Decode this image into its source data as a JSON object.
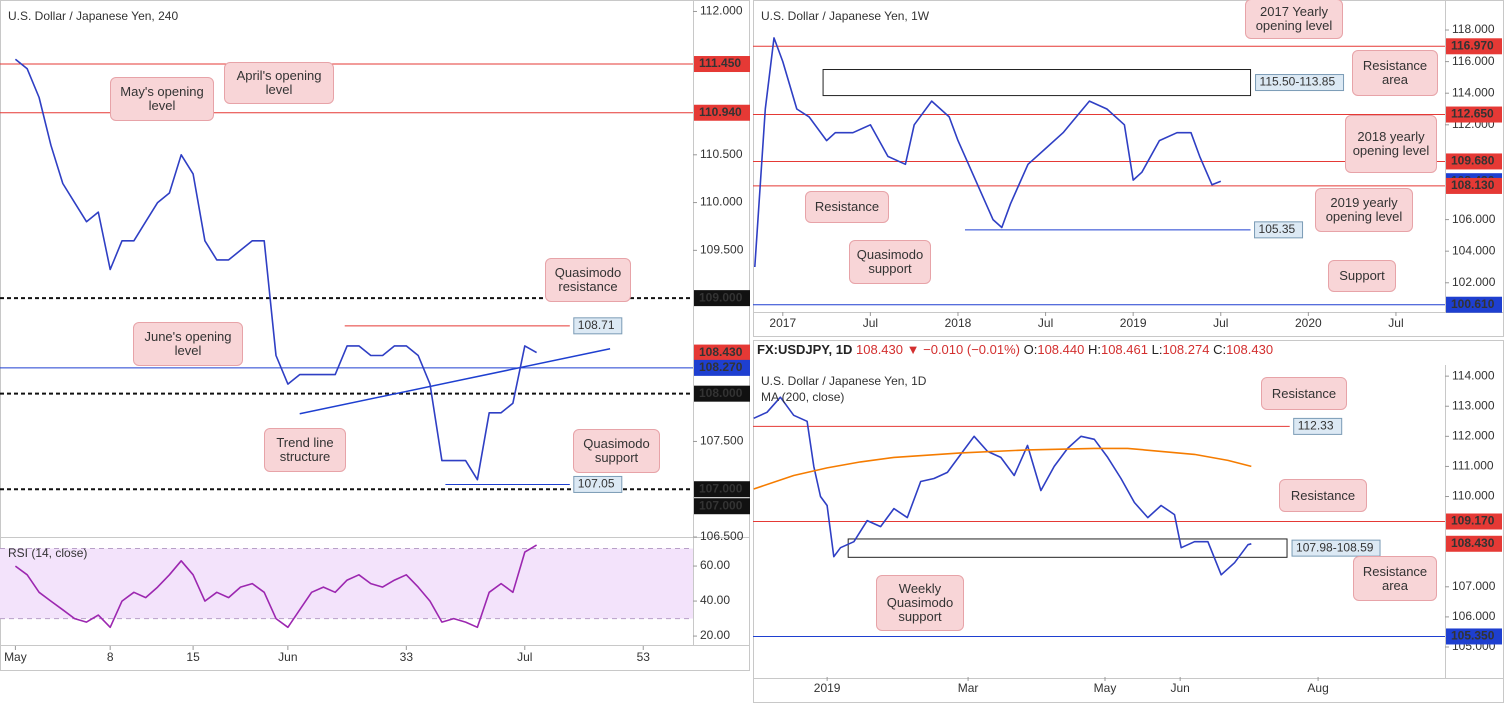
{
  "header": {
    "symbol": "FX:USDJPY, 1D",
    "price": "108.430",
    "arrow": "▼",
    "change": "−0.010 (−0.01%)",
    "open_label": "O:",
    "open": "108.440",
    "high_label": "H:",
    "high": "108.461",
    "low_label": "L:",
    "low": "108.274",
    "close_label": "C:",
    "close": "108.430"
  },
  "chart_data": [
    {
      "type": "line",
      "title": "U.S. Dollar / Japanese Yen, 240",
      "series": [
        {
          "color": "#2f3fc4",
          "values": [
            111.5,
            111.4,
            111.1,
            110.6,
            110.2,
            110.0,
            109.8,
            109.9,
            109.3,
            109.6,
            109.6,
            109.8,
            110.0,
            110.1,
            110.5,
            110.3,
            109.6,
            109.4,
            109.4,
            109.5,
            109.6,
            109.6,
            108.4,
            108.1,
            108.2,
            108.2,
            108.2,
            108.2,
            108.5,
            108.5,
            108.4,
            108.4,
            108.5,
            108.5,
            108.4,
            108.1,
            107.3,
            107.3,
            107.3,
            107.1,
            107.8,
            107.8,
            107.9,
            108.5,
            108.43
          ]
        }
      ],
      "xlim": [
        -1.3,
        57.2
      ],
      "ylim": [
        106.5,
        112.12
      ],
      "xticks": [
        {
          "value": 0,
          "label": "May"
        },
        8,
        15,
        {
          "value": 23,
          "label": "Jun"
        },
        33,
        {
          "value": 43,
          "label": "Jul"
        },
        53
      ],
      "yticks": [
        {
          "value": 112,
          "label": "112.000"
        },
        {
          "value": 110.5,
          "label": "110.500"
        },
        {
          "value": 110,
          "label": "110.000"
        },
        {
          "value": 109.5,
          "label": "109.500"
        },
        {
          "value": 107.5,
          "label": "107.500"
        },
        {
          "value": 106.5,
          "label": "106.500"
        }
      ],
      "levels": [
        {
          "value": 111.45,
          "label": "111.450",
          "color": "#e53935",
          "style": "solid"
        },
        {
          "value": 110.94,
          "label": "110.940",
          "color": "#e53935",
          "style": "solid"
        },
        {
          "value": 109,
          "label": "109.000",
          "color": "#111111",
          "style": "dashed"
        },
        {
          "value": 108.43,
          "label": "108.430",
          "color": "#e53935",
          "style": "none"
        },
        {
          "value": 108.27,
          "label": "108.270",
          "color": "#1e3fd0",
          "style": "solid"
        },
        {
          "value": 108,
          "label": "108.000",
          "color": "#111111",
          "style": "dashed"
        },
        {
          "value": 107,
          "label": "107.000",
          "color": "#111111",
          "style": "dashed"
        },
        {
          "value": 107,
          "label": "107.000",
          "color": "#111111",
          "style": "none"
        },
        {
          "value": 108.71,
          "label": "108.71",
          "color": "#e53935",
          "style": "solid",
          "x": [
            27.8,
            46.8
          ]
        },
        {
          "value": 107.05,
          "label": "107.05",
          "color": "#1e3fd0",
          "style": "solid",
          "x": [
            36.3,
            46.8
          ]
        }
      ],
      "lines": [
        {
          "color": "#1e3fd0",
          "x": [
            24,
            50.2
          ],
          "values": [
            107.79,
            108.47
          ]
        }
      ],
      "annotations": [
        "May's opening level",
        "April's opening level",
        "Quasimodo resistance",
        "June's opening level",
        "Trend line structure",
        "Quasimodo support"
      ]
    },
    {
      "type": "line",
      "title": "RSI (14, close)",
      "series": [
        {
          "color": "#9c27b0",
          "values": [
            60,
            55,
            45,
            40,
            35,
            30,
            28,
            32,
            25,
            40,
            45,
            42,
            48,
            55,
            63,
            55,
            40,
            45,
            42,
            48,
            50,
            45,
            30,
            25,
            35,
            45,
            48,
            45,
            52,
            55,
            50,
            48,
            52,
            55,
            48,
            40,
            28,
            30,
            28,
            25,
            45,
            50,
            45,
            68,
            72
          ]
        }
      ],
      "xlim": [
        -1.3,
        57.2
      ],
      "ylim": [
        14.9,
        76.6
      ],
      "yticks": [
        {
          "value": 60,
          "label": "60.00"
        },
        {
          "value": 40,
          "label": "40.00"
        },
        {
          "value": 20,
          "label": "20.00"
        }
      ],
      "band": [
        30,
        70
      ],
      "band_color": "#f3e3fb"
    },
    {
      "type": "line",
      "title": "U.S. Dollar / Japanese Yen, 1W",
      "x": [
        2016.84,
        2016.9,
        2016.95,
        2017.0,
        2017.08,
        2017.15,
        2017.25,
        2017.3,
        2017.4,
        2017.5,
        2017.6,
        2017.7,
        2017.75,
        2017.85,
        2017.95,
        2018.0,
        2018.1,
        2018.2,
        2018.25,
        2018.3,
        2018.4,
        2018.5,
        2018.6,
        2018.75,
        2018.85,
        2018.95,
        2019.0,
        2019.05,
        2019.15,
        2019.25,
        2019.33,
        2019.38,
        2019.45,
        2019.5
      ],
      "series": [
        {
          "color": "#2f3fc4",
          "values": [
            103,
            113,
            117.5,
            116,
            113,
            112.5,
            111,
            111.5,
            111.5,
            112,
            110,
            109.5,
            112,
            113.5,
            112.5,
            111,
            108.5,
            106,
            105.5,
            107,
            109.5,
            110.5,
            111.5,
            113.5,
            113,
            112,
            108.5,
            109,
            111,
            111.5,
            111.5,
            110,
            108.2,
            108.43
          ]
        }
      ],
      "xlim": [
        2016.83,
        2020.78
      ],
      "ylim": [
        100.15,
        119.9
      ],
      "xticks": [
        2017,
        {
          "value": 2017.5,
          "label": "Jul"
        },
        2018,
        {
          "value": 2018.5,
          "label": "Jul"
        },
        2019,
        {
          "value": 2019.5,
          "label": "Jul"
        },
        2020,
        {
          "value": 2020.5,
          "label": "Jul"
        }
      ],
      "yticks": [
        {
          "value": 118,
          "label": "118.000"
        },
        {
          "value": 116,
          "label": "116.000"
        },
        {
          "value": 114,
          "label": "114.000"
        },
        {
          "value": 112,
          "label": "112.000"
        },
        {
          "value": 106,
          "label": "106.000"
        },
        {
          "value": 104,
          "label": "104.000"
        },
        {
          "value": 102,
          "label": "102.000"
        }
      ],
      "levels": [
        {
          "value": 116.97,
          "label": "116.970",
          "color": "#e53935",
          "style": "solid"
        },
        {
          "value": 112.65,
          "label": "112.650",
          "color": "#e53935",
          "style": "solid"
        },
        {
          "value": 109.68,
          "label": "109.680",
          "color": "#e53935",
          "style": "solid"
        },
        {
          "value": 108.43,
          "label": "108.430",
          "color": "#1e3fd0",
          "style": "none"
        },
        {
          "value": 108.13,
          "label": "108.130",
          "color": "#e53935",
          "style": "solid"
        },
        {
          "value": 100.61,
          "label": "100.610",
          "color": "#1e3fd0",
          "style": "solid"
        },
        {
          "value": 105.35,
          "label": "105.35",
          "color": "#1e3fd0",
          "style": "solid",
          "x": [
            2018.04,
            2019.67
          ]
        }
      ],
      "zones": [
        {
          "x": [
            2017.23,
            2019.67
          ],
          "range": [
            115.5,
            113.85
          ],
          "label": "115.50-113.85"
        }
      ],
      "annotations": [
        "2017 Yearly opening level",
        "Resistance area",
        "2018 yearly opening level",
        "Resistance",
        "2019 yearly opening level",
        "Quasimodo support",
        "Support"
      ]
    },
    {
      "type": "line",
      "title": "U.S. Dollar / Japanese Yen, 1D",
      "x": [
        -22,
        -18,
        -14,
        -10,
        -6,
        -4,
        -2,
        0,
        2,
        4,
        8,
        12,
        16,
        20,
        24,
        28,
        32,
        36,
        40,
        44,
        48,
        52,
        56,
        60,
        64,
        68,
        72,
        76,
        80,
        84,
        88,
        92,
        96,
        100,
        104,
        106,
        110,
        114,
        118,
        122,
        126,
        127
      ],
      "series": [
        {
          "color": "#2f3fc4",
          "values": [
            112.6,
            112.8,
            113.3,
            112.7,
            112.5,
            111.0,
            110.0,
            109.7,
            108.0,
            108.3,
            108.5,
            109.2,
            109.0,
            109.6,
            109.3,
            110.5,
            110.6,
            110.8,
            111.4,
            112.0,
            111.5,
            111.3,
            110.7,
            111.7,
            110.2,
            111.0,
            111.6,
            112.0,
            111.9,
            111.3,
            110.6,
            109.8,
            109.3,
            109.7,
            109.4,
            108.3,
            108.5,
            108.5,
            107.4,
            107.8,
            108.4,
            108.43
          ]
        },
        {
          "name": "MA (200, close)",
          "color": "#f57c00",
          "x": [
            -22,
            -10,
            0,
            10,
            20,
            40,
            60,
            80,
            90,
            100,
            110,
            120,
            127
          ],
          "values": [
            110.25,
            110.7,
            110.95,
            111.15,
            111.3,
            111.45,
            111.55,
            111.6,
            111.6,
            111.5,
            111.4,
            111.2,
            111.0
          ]
        }
      ],
      "xlim": [
        -22.2,
        185
      ],
      "ylim": [
        103.97,
        114.37
      ],
      "xticks": [
        {
          "value": 0,
          "label": "2019"
        },
        {
          "value": 42.2,
          "label": "Mar"
        },
        {
          "value": 83.2,
          "label": "May"
        },
        {
          "value": 105.7,
          "label": "Jun"
        },
        {
          "value": 147,
          "label": "Aug"
        }
      ],
      "yticks": [
        {
          "value": 114,
          "label": "114.000"
        },
        {
          "value": 113,
          "label": "113.000"
        },
        {
          "value": 112,
          "label": "112.000"
        },
        {
          "value": 111,
          "label": "111.000"
        },
        {
          "value": 110,
          "label": "110.000"
        },
        {
          "value": 107,
          "label": "107.000"
        },
        {
          "value": 106,
          "label": "106.000"
        },
        {
          "value": 105,
          "label": "105.000"
        }
      ],
      "levels": [
        {
          "value": 112.33,
          "label": "112.33",
          "color": "#e53935",
          "style": "solid",
          "x": [
            -22.2,
            138.5
          ]
        },
        {
          "value": 109.17,
          "label": "109.170",
          "color": "#e53935",
          "style": "solid"
        },
        {
          "value": 108.43,
          "label": "108.430",
          "color": "#e53935",
          "style": "none"
        },
        {
          "value": 105.35,
          "label": "105.350",
          "color": "#1e3fd0",
          "style": "solid"
        }
      ],
      "zones": [
        {
          "x": [
            6.3,
            137.7
          ],
          "range": [
            108.59,
            107.98
          ],
          "label": "107.98-108.59"
        }
      ],
      "annotations": [
        "Resistance",
        "Resistance",
        "Resistance area",
        "Weekly Quasimodo support"
      ]
    }
  ]
}
